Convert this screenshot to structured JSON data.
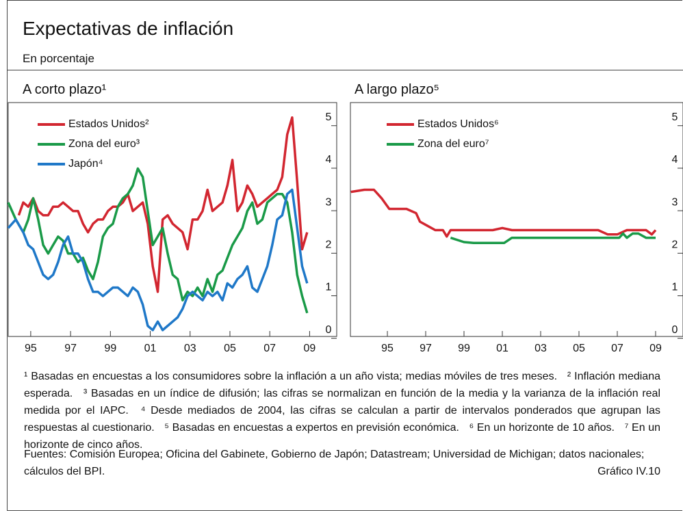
{
  "title": "Expectativas de inflación",
  "subtitle": "En porcentaje",
  "chart_data": [
    {
      "type": "line",
      "title": "A corto plazo¹",
      "xlim": [
        1994.37,
        2010.86
      ],
      "ylim": [
        -0.15,
        5.35
      ],
      "xticks": [
        {
          "value": 1995.5,
          "label": "95"
        },
        {
          "value": 1997.5,
          "label": "97"
        },
        {
          "value": 1999.5,
          "label": "99"
        },
        {
          "value": 2001.5,
          "label": "01"
        },
        {
          "value": 2003.5,
          "label": "03"
        },
        {
          "value": 2005.5,
          "label": "05"
        },
        {
          "value": 2007.5,
          "label": "07"
        },
        {
          "value": 2009.5,
          "label": "09"
        }
      ],
      "yticks": [
        0,
        1,
        2,
        3,
        4,
        5
      ],
      "series": [
        {
          "name": "Estados Unidos²",
          "color": "#d22630",
          "x": [
            1994.9,
            1995.125,
            1995.375,
            1995.625,
            1995.875,
            1996.125,
            1996.375,
            1996.625,
            1996.875,
            1997.125,
            1997.375,
            1997.625,
            1997.875,
            1998.125,
            1998.375,
            1998.625,
            1998.875,
            1999.125,
            1999.375,
            1999.625,
            1999.875,
            2000.125,
            2000.375,
            2000.625,
            2000.875,
            2001.125,
            2001.375,
            2001.625,
            2001.875,
            2002.125,
            2002.375,
            2002.625,
            2002.875,
            2003.125,
            2003.375,
            2003.625,
            2003.875,
            2004.125,
            2004.375,
            2004.625,
            2004.875,
            2005.125,
            2005.375,
            2005.625,
            2005.875,
            2006.125,
            2006.375,
            2006.625,
            2006.875,
            2007.125,
            2007.375,
            2007.625,
            2007.875,
            2008.125,
            2008.375,
            2008.625,
            2008.875,
            2009.125,
            2009.375
          ],
          "values": [
            2.7,
            3.0,
            2.9,
            3.1,
            2.8,
            2.7,
            2.7,
            2.9,
            2.9,
            3.0,
            2.9,
            2.8,
            2.8,
            2.5,
            2.3,
            2.5,
            2.6,
            2.6,
            2.8,
            2.9,
            2.9,
            3.0,
            3.2,
            2.8,
            2.9,
            3.0,
            2.5,
            1.5,
            0.9,
            2.6,
            2.7,
            2.5,
            2.4,
            2.3,
            1.9,
            2.6,
            2.6,
            2.8,
            3.3,
            2.8,
            2.9,
            3.0,
            3.4,
            4.0,
            2.8,
            3.0,
            3.4,
            3.2,
            2.9,
            3.0,
            3.1,
            3.2,
            3.3,
            3.6,
            4.6,
            5.0,
            3.5,
            1.9,
            2.3
          ]
        },
        {
          "name": "Zona del euro³",
          "color": "#1a9a48",
          "x": [
            1994.37,
            1994.75,
            1995.125,
            1995.375,
            1995.625,
            1995.875,
            1996.125,
            1996.375,
            1996.625,
            1996.875,
            1997.125,
            1997.375,
            1997.625,
            1997.875,
            1998.125,
            1998.375,
            1998.625,
            1998.875,
            1999.125,
            1999.375,
            1999.625,
            1999.875,
            2000.125,
            2000.375,
            2000.625,
            2000.875,
            2001.125,
            2001.375,
            2001.625,
            2001.875,
            2002.125,
            2002.375,
            2002.625,
            2002.875,
            2003.125,
            2003.375,
            2003.625,
            2003.875,
            2004.125,
            2004.375,
            2004.625,
            2004.875,
            2005.125,
            2005.375,
            2005.625,
            2005.875,
            2006.125,
            2006.375,
            2006.625,
            2006.875,
            2007.125,
            2007.375,
            2007.625,
            2007.875,
            2008.125,
            2008.375,
            2008.625,
            2008.875,
            2009.125,
            2009.375
          ],
          "values": [
            3.0,
            2.6,
            2.3,
            2.6,
            3.1,
            2.6,
            2.0,
            1.8,
            2.0,
            2.2,
            2.1,
            1.8,
            1.8,
            1.6,
            1.7,
            1.4,
            1.2,
            1.6,
            2.2,
            2.4,
            2.5,
            2.9,
            3.1,
            3.2,
            3.4,
            3.8,
            3.6,
            2.8,
            2.0,
            2.2,
            2.4,
            1.8,
            1.3,
            1.2,
            0.7,
            0.9,
            0.8,
            1.0,
            0.8,
            1.2,
            0.9,
            1.3,
            1.4,
            1.7,
            2.0,
            2.2,
            2.4,
            2.8,
            3.0,
            2.5,
            2.6,
            3.0,
            3.1,
            3.2,
            3.2,
            3.0,
            2.3,
            1.3,
            0.8,
            0.4
          ]
        },
        {
          "name": "Japón⁴",
          "color": "#1f78c8",
          "x": [
            1994.37,
            1994.75,
            1995.125,
            1995.375,
            1995.625,
            1995.875,
            1996.125,
            1996.375,
            1996.625,
            1996.875,
            1997.125,
            1997.375,
            1997.625,
            1997.875,
            1998.125,
            1998.375,
            1998.625,
            1998.875,
            1999.125,
            1999.375,
            1999.625,
            1999.875,
            2000.125,
            2000.375,
            2000.625,
            2000.875,
            2001.125,
            2001.375,
            2001.625,
            2001.875,
            2002.125,
            2002.375,
            2002.625,
            2002.875,
            2003.125,
            2003.375,
            2003.625,
            2003.875,
            2004.125,
            2004.375,
            2004.625,
            2004.875,
            2005.125,
            2005.375,
            2005.625,
            2005.875,
            2006.125,
            2006.375,
            2006.625,
            2006.875,
            2007.125,
            2007.375,
            2007.625,
            2007.875,
            2008.125,
            2008.375,
            2008.625,
            2008.875,
            2009.125,
            2009.375
          ],
          "values": [
            2.4,
            2.6,
            2.3,
            2.0,
            1.9,
            1.6,
            1.3,
            1.2,
            1.3,
            1.6,
            2.0,
            2.2,
            1.8,
            1.8,
            1.6,
            1.2,
            0.9,
            0.9,
            0.8,
            0.9,
            1.0,
            1.0,
            0.9,
            0.8,
            1.0,
            0.9,
            0.6,
            0.1,
            0.0,
            0.2,
            0.0,
            0.1,
            0.2,
            0.3,
            0.5,
            0.8,
            0.9,
            0.8,
            0.7,
            0.9,
            0.8,
            0.9,
            0.7,
            1.1,
            1.0,
            1.2,
            1.3,
            1.5,
            1.0,
            0.9,
            1.2,
            1.5,
            2.0,
            2.6,
            2.7,
            3.2,
            3.3,
            2.4,
            1.5,
            1.1
          ]
        }
      ]
    },
    {
      "type": "line",
      "title": "A largo plazo⁵",
      "xlim": [
        1993.57,
        2010.93
      ],
      "ylim": [
        -0.15,
        5.35
      ],
      "xticks": [
        {
          "value": 1995.5,
          "label": "95"
        },
        {
          "value": 1997.5,
          "label": "97"
        },
        {
          "value": 1999.5,
          "label": "99"
        },
        {
          "value": 2001.5,
          "label": "01"
        },
        {
          "value": 2003.5,
          "label": "03"
        },
        {
          "value": 2005.5,
          "label": "05"
        },
        {
          "value": 2007.5,
          "label": "07"
        },
        {
          "value": 2009.5,
          "label": "09"
        }
      ],
      "yticks": [
        0,
        1,
        2,
        3,
        4,
        5
      ],
      "series": [
        {
          "name": "Estados Unidos⁶",
          "color": "#d22630",
          "x": [
            1993.6,
            1994.3,
            1994.8,
            1995.2,
            1995.6,
            1996,
            1996.5,
            1997,
            1997.2,
            1997.6,
            1998,
            1998.4,
            1998.6,
            1998.8,
            1999.5,
            2000,
            2000.5,
            2001,
            2001.5,
            2002,
            2002.5,
            2003,
            2003.5,
            2004,
            2004.5,
            2005,
            2005.5,
            2006,
            2006.5,
            2007,
            2007.5,
            2008,
            2008.5,
            2009,
            2009.3,
            2009.5
          ],
          "values": [
            3.25,
            3.3,
            3.3,
            3.1,
            2.85,
            2.85,
            2.85,
            2.75,
            2.55,
            2.45,
            2.35,
            2.35,
            2.2,
            2.35,
            2.35,
            2.35,
            2.35,
            2.35,
            2.4,
            2.35,
            2.35,
            2.35,
            2.35,
            2.35,
            2.35,
            2.35,
            2.35,
            2.35,
            2.35,
            2.25,
            2.25,
            2.35,
            2.35,
            2.35,
            2.25,
            2.35
          ]
        },
        {
          "name": "Zona del euro⁷",
          "color": "#1a9a48",
          "x": [
            1998.8,
            1999.5,
            2000,
            2001,
            2001.6,
            2002,
            2003,
            2004,
            2005,
            2006,
            2007,
            2007.6,
            2007.8,
            2008,
            2008.3,
            2008.6,
            2009,
            2009.5
          ],
          "values": [
            2.17,
            2.07,
            2.05,
            2.05,
            2.05,
            2.17,
            2.17,
            2.17,
            2.17,
            2.17,
            2.17,
            2.17,
            2.27,
            2.17,
            2.27,
            2.27,
            2.17,
            2.17
          ]
        }
      ]
    }
  ],
  "footnotes": [
    "¹ Basadas en encuestas a los consumidores sobre la inflación a un año vista; medias móviles de tres meses.",
    "² Inflación mediana esperada.",
    "³ Basadas en un índice de difusión; las cifras se normalizan en función de la media y la varianza de la inflación real medida por el IAPC.",
    "⁴ Desde mediados de 2004, las cifras se calculan a partir de intervalos ponderados que agrupan las respuestas al cuestionario.",
    "⁵ Basadas en encuestas a expertos en previsión económica.",
    "⁶ En un horizonte de 10 años.",
    "⁷ En un horizonte de cinco años."
  ],
  "sources": "Fuentes: Comisión Europea; Oficina del Gabinete, Gobierno de Japón; Datastream; Universidad de Michigan; datos nacionales; cálculos del BPI.",
  "chart_id": "Gráfico IV.10"
}
